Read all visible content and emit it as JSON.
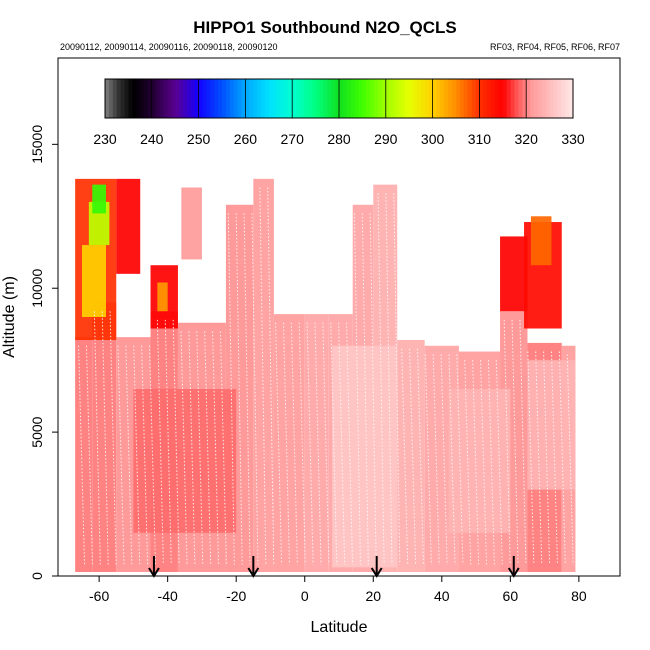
{
  "chart_data": {
    "type": "heatmap",
    "title": "HIPPO1 Southbound N2O_QCLS",
    "subtitle_left": "20090112, 20090114, 20090116, 20090118, 20090120",
    "subtitle_right": "RF03, RF04, RF05, RF06, RF07",
    "xlabel": "Latitude",
    "ylabel": "Altitude (m)",
    "xlim": [
      -72,
      92
    ],
    "ylim": [
      0,
      18000
    ],
    "x_ticks": [
      -60,
      -40,
      -20,
      0,
      20,
      40,
      60,
      80
    ],
    "y_ticks": [
      0,
      5000,
      10000,
      15000
    ],
    "colorbar": {
      "ticks": [
        230,
        240,
        250,
        260,
        270,
        280,
        290,
        300,
        310,
        320,
        330
      ],
      "stops": [
        {
          "value": 230,
          "color": "#808080"
        },
        {
          "value": 233,
          "color": "#303030"
        },
        {
          "value": 236,
          "color": "#000000"
        },
        {
          "value": 240,
          "color": "#200030"
        },
        {
          "value": 245,
          "color": "#5a0090"
        },
        {
          "value": 250,
          "color": "#1400ff"
        },
        {
          "value": 255,
          "color": "#0050ff"
        },
        {
          "value": 260,
          "color": "#00a8ff"
        },
        {
          "value": 265,
          "color": "#00e0ff"
        },
        {
          "value": 270,
          "color": "#00ffd0"
        },
        {
          "value": 275,
          "color": "#00ff80"
        },
        {
          "value": 280,
          "color": "#10e020"
        },
        {
          "value": 285,
          "color": "#40ff00"
        },
        {
          "value": 290,
          "color": "#a0ff00"
        },
        {
          "value": 295,
          "color": "#e6ff00"
        },
        {
          "value": 300,
          "color": "#ffd000"
        },
        {
          "value": 305,
          "color": "#ff8c00"
        },
        {
          "value": 310,
          "color": "#ff3000"
        },
        {
          "value": 315,
          "color": "#ff0000"
        },
        {
          "value": 318,
          "color": "#ff5555"
        },
        {
          "value": 321,
          "color": "#ff9a9a"
        },
        {
          "value": 325,
          "color": "#ffbcbc"
        },
        {
          "value": 330,
          "color": "#ffe8e8"
        }
      ]
    },
    "flight_arrow_latitudes": [
      -44,
      -15,
      21,
      61
    ],
    "columns": [
      {
        "x": [
          -67,
          -62
        ],
        "top": 8300,
        "value": 320
      },
      {
        "x": [
          -62,
          -55
        ],
        "top": 9500,
        "value": 320
      },
      {
        "x": [
          -55,
          -45
        ],
        "top": 8300,
        "value": 321
      },
      {
        "x": [
          -45,
          -37
        ],
        "top": 9200,
        "value": 320
      },
      {
        "x": [
          -37,
          -23
        ],
        "top": 8800,
        "value": 321
      },
      {
        "x": [
          -23,
          -15
        ],
        "top": 12900,
        "value": 321
      },
      {
        "x": [
          -15,
          -9
        ],
        "top": 13800,
        "value": 322
      },
      {
        "x": [
          -9,
          0
        ],
        "top": 9100,
        "value": 322
      },
      {
        "x": [
          0,
          7
        ],
        "top": 9100,
        "value": 323
      },
      {
        "x": [
          7,
          14
        ],
        "top": 9100,
        "value": 323
      },
      {
        "x": [
          14,
          20
        ],
        "top": 12900,
        "value": 323
      },
      {
        "x": [
          20,
          27
        ],
        "top": 13600,
        "value": 324
      },
      {
        "x": [
          27,
          35
        ],
        "top": 8200,
        "value": 324
      },
      {
        "x": [
          35,
          45
        ],
        "top": 8000,
        "value": 323
      },
      {
        "x": [
          45,
          57
        ],
        "top": 7800,
        "value": 322
      },
      {
        "x": [
          57,
          65
        ],
        "top": 9200,
        "value": 321
      },
      {
        "x": [
          65,
          75
        ],
        "top": 8100,
        "value": 320
      },
      {
        "x": [
          75,
          79
        ],
        "top": 8000,
        "value": 322
      }
    ],
    "patches": [
      {
        "x": [
          -67,
          -55
        ],
        "y": [
          8200,
          13800
        ],
        "value": 310
      },
      {
        "x": [
          -65,
          -58
        ],
        "y": [
          9000,
          11500
        ],
        "value": 300
      },
      {
        "x": [
          -63,
          -57
        ],
        "y": [
          11500,
          13000
        ],
        "value": 292
      },
      {
        "x": [
          -62,
          -58
        ],
        "y": [
          12600,
          13600
        ],
        "value": 284
      },
      {
        "x": [
          -55,
          -48
        ],
        "y": [
          10500,
          13800
        ],
        "value": 315
      },
      {
        "x": [
          -45,
          -37
        ],
        "y": [
          8600,
          10800
        ],
        "value": 315
      },
      {
        "x": [
          -43,
          -40
        ],
        "y": [
          9200,
          10200
        ],
        "value": 304
      },
      {
        "x": [
          -36,
          -30
        ],
        "y": [
          11000,
          13500
        ],
        "value": 321
      },
      {
        "x": [
          57,
          65
        ],
        "y": [
          9200,
          11800
        ],
        "value": 315
      },
      {
        "x": [
          64,
          75
        ],
        "y": [
          8600,
          12300
        ],
        "value": 314
      },
      {
        "x": [
          66,
          72
        ],
        "y": [
          10800,
          12500
        ],
        "value": 307
      },
      {
        "x": [
          -50,
          -20
        ],
        "y": [
          1500,
          6500
        ],
        "value": 319
      },
      {
        "x": [
          8,
          27
        ],
        "y": [
          300,
          8000
        ],
        "value": 326
      },
      {
        "x": [
          42,
          60
        ],
        "y": [
          1500,
          6500
        ],
        "value": 324
      },
      {
        "x": [
          65,
          79
        ],
        "y": [
          3000,
          7500
        ],
        "value": 324
      }
    ]
  }
}
